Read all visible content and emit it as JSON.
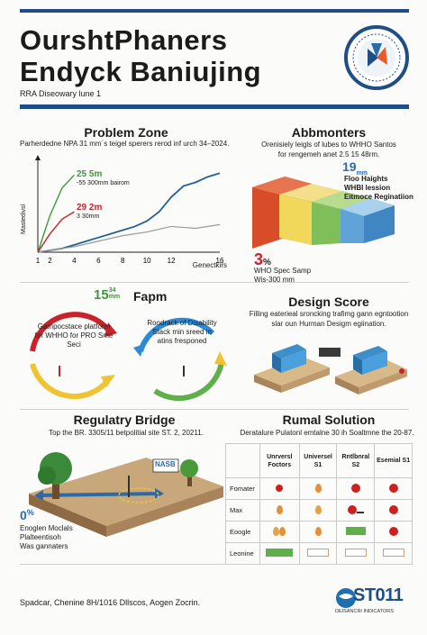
{
  "header": {
    "title_line1": "OurshtPhaners",
    "title_line2": "Endyck Baniujing",
    "subtitle": "RRA Diseowary lune 1"
  },
  "problem": {
    "heading": "Problem Zone",
    "caption": "Parherdedne NPA 31 mm´s teigel sperers rerod inf urch 34–2024.",
    "ylabel": "Mastedivsl",
    "xlabel": "Genectkirs",
    "annot_green_1": "25 5m",
    "annot_green_2": "-55 300mm bairom",
    "annot_red_1": "29 2m",
    "annot_red_2": "3 30mm"
  },
  "abb": {
    "heading": "Abbmonters",
    "caption_line1": "Orenisiely leigls of lubes to WHHO Santos",
    "caption_line2": "for rengemeh anet 2.5 15 48rm.",
    "stat": "19",
    "stat_unit": "mm",
    "label1": "Floo Haights",
    "label2": "WHBI lession",
    "label3": "Eitmoce Reginatiion",
    "big": "3",
    "big_unit": "%",
    "note1": "WHO Spec Samp",
    "note2": "Wis-300 mm"
  },
  "fapm": {
    "num": "15",
    "unit1": "34",
    "unit2": "mm",
    "heading": "Fapm",
    "left_text": "Gampocstace platform for WHHO for PRO Sme Seci",
    "right_text": "Roodrack of Disability Stack min sreed in atins fresponed"
  },
  "design": {
    "heading": "Design Score",
    "caption_line1": "Filling eaterieal sroncking trafimg gann egntootion",
    "caption_line2": "slar oun Hurman Desigm egiination."
  },
  "bridge": {
    "heading": "Regulatry Bridge",
    "caption": "Top the BR. 3305/11 betpolitial site ST. 2, 20211.",
    "sign": "NASB",
    "pct": "0",
    "pct_unit": "%",
    "line1": "Enoglen Moclals",
    "line2": "Plalteentisoh",
    "line3": "Was gannaters"
  },
  "solution": {
    "heading": "Rumal Solution",
    "caption": "Deratalure Pulatonl emtalne 30 ih Soaltmne the 20-87.",
    "columns": [
      "",
      "Unrversl Foctors",
      "Universel S1",
      "Rntlbnral S2",
      "Esemial S1"
    ],
    "rows": [
      "Fomater",
      "Max",
      "Eoogle",
      "Leonine"
    ]
  },
  "footer": {
    "text": "Spadcar, Chenine 8H/1016 Dllscos, Aogen Zocrin.",
    "logo": "ST011",
    "logo_sub": "DEISANCRI INDICATORS"
  },
  "colors": {
    "navy": "#1f4e86",
    "green": "#3a9a3a",
    "red": "#c8222a",
    "teal": "#2d6aa8",
    "blue_line": "#23609a"
  },
  "chart_data": {
    "type": "line",
    "xlabel": "Genectkirs",
    "ylabel": "Mastedivsl",
    "x_ticks": [
      1,
      2,
      4,
      6,
      8,
      10,
      12,
      16
    ],
    "series": [
      {
        "x": [
          1,
          2,
          3,
          4,
          5,
          6,
          7,
          8,
          9,
          10,
          11,
          12,
          13,
          14,
          15,
          16
        ],
        "y": [
          0,
          1,
          2,
          4,
          6,
          8,
          10,
          12,
          14,
          17,
          22,
          30,
          36,
          38,
          41,
          43
        ]
      },
      {
        "x": [
          1,
          2,
          4,
          6,
          8,
          10,
          12,
          14,
          16
        ],
        "y": [
          0,
          1,
          3,
          6,
          9,
          11,
          14,
          13,
          15
        ]
      },
      {
        "x": [
          1,
          2,
          3,
          4
        ],
        "y": [
          0,
          20,
          35,
          42
        ]
      },
      {
        "x": [
          1,
          2,
          3,
          4
        ],
        "y": [
          0,
          10,
          18,
          22
        ]
      }
    ],
    "xlim": [
      1,
      16
    ],
    "ylim": [
      0,
      50
    ]
  }
}
